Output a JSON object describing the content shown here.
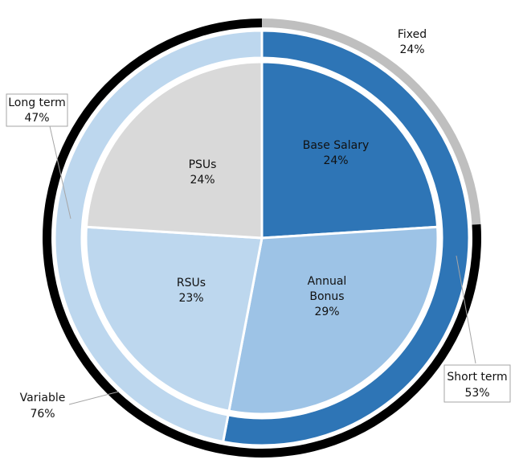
{
  "chart_data": {
    "type": "pie",
    "subtype": "multi-level donut",
    "title": "",
    "colors": {
      "base_salary": "#2e75b6",
      "annual_bonus": "#9dc3e6",
      "rsus": "#bdd7ee",
      "psus": "#d9d9d9",
      "short_term": "#2e75b6",
      "long_term": "#bdd7ee",
      "fixed": "#bfbfbf",
      "variable": "#000000"
    },
    "rings": [
      {
        "name": "inner",
        "slices": [
          {
            "key": "base_salary",
            "label": "Base Salary",
            "pct_label": "24%",
            "value": 24
          },
          {
            "key": "annual_bonus",
            "label": "Annual Bonus",
            "pct_label": "29%",
            "value": 29
          },
          {
            "key": "rsus",
            "label": "RSUs",
            "pct_label": "23%",
            "value": 23
          },
          {
            "key": "psus",
            "label": "PSUs",
            "pct_label": "24%",
            "value": 24
          }
        ]
      },
      {
        "name": "middle",
        "slices": [
          {
            "key": "short_term",
            "label": "Short term",
            "pct_label": "53%",
            "value": 53
          },
          {
            "key": "long_term",
            "label": "Long term",
            "pct_label": "47%",
            "value": 47
          }
        ]
      },
      {
        "name": "outer",
        "slices": [
          {
            "key": "fixed",
            "label": "Fixed",
            "pct_label": "24%",
            "value": 24
          },
          {
            "key": "variable",
            "label": "Variable",
            "pct_label": "76%",
            "value": 76
          }
        ]
      }
    ]
  }
}
